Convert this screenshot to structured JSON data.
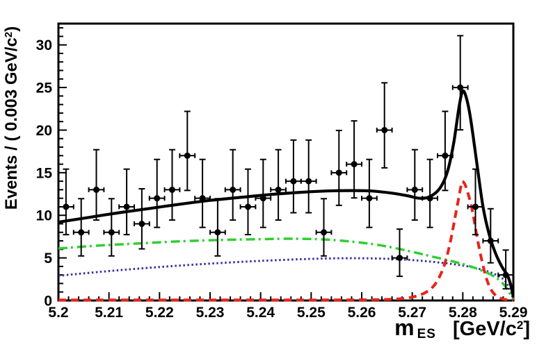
{
  "chart_data": {
    "type": "scatter",
    "subtype": "histogram-with-fit-curves",
    "title": "",
    "legend": "none",
    "grid": false,
    "xlabel": {
      "symbol": "m",
      "subscript": "ES",
      "unit_open": "[GeV/c",
      "unit_sup": "2",
      "unit_close": "]"
    },
    "ylabel": {
      "prefix": "Events / ( 0.003 GeV/c",
      "sup": "2",
      "close": ")"
    },
    "xlim": [
      5.2,
      5.29
    ],
    "ylim": [
      0,
      32.5
    ],
    "x_ticks": {
      "major": [
        5.2,
        5.21,
        5.22,
        5.23,
        5.24,
        5.25,
        5.26,
        5.27,
        5.28,
        5.29
      ],
      "labels": [
        "5.2",
        "5.21",
        "5.22",
        "5.23",
        "5.24",
        "5.25",
        "5.26",
        "5.27",
        "5.28",
        "5.29"
      ],
      "minor_step": 0.002
    },
    "y_ticks": {
      "major": [
        0,
        5,
        10,
        15,
        20,
        25,
        30
      ],
      "labels": [
        "0",
        "5",
        "10",
        "15",
        "20",
        "25",
        "30"
      ],
      "minor_step": 1
    },
    "bin_half_width": 0.0015,
    "marker": {
      "color": "#000000",
      "radius": 4.5
    },
    "points": [
      {
        "x": 5.2015,
        "y": 11,
        "eu": 4.42,
        "ed": 3.27
      },
      {
        "x": 5.2045,
        "y": 8,
        "eu": 3.95,
        "ed": 2.77
      },
      {
        "x": 5.2075,
        "y": 13,
        "eu": 4.7,
        "ed": 3.56
      },
      {
        "x": 5.2105,
        "y": 8,
        "eu": 3.95,
        "ed": 2.77
      },
      {
        "x": 5.2135,
        "y": 11,
        "eu": 4.42,
        "ed": 3.27
      },
      {
        "x": 5.2165,
        "y": 9,
        "eu": 4.11,
        "ed": 2.94
      },
      {
        "x": 5.2195,
        "y": 12,
        "eu": 4.56,
        "ed": 3.42
      },
      {
        "x": 5.2225,
        "y": 13,
        "eu": 4.7,
        "ed": 3.56
      },
      {
        "x": 5.2255,
        "y": 17,
        "eu": 5.2,
        "ed": 4.08
      },
      {
        "x": 5.2285,
        "y": 12,
        "eu": 4.56,
        "ed": 3.42
      },
      {
        "x": 5.2315,
        "y": 8,
        "eu": 3.95,
        "ed": 2.77
      },
      {
        "x": 5.2345,
        "y": 13,
        "eu": 4.7,
        "ed": 3.56
      },
      {
        "x": 5.2375,
        "y": 11,
        "eu": 4.42,
        "ed": 3.27
      },
      {
        "x": 5.2405,
        "y": 12,
        "eu": 4.56,
        "ed": 3.42
      },
      {
        "x": 5.2435,
        "y": 13,
        "eu": 4.7,
        "ed": 3.56
      },
      {
        "x": 5.2465,
        "y": 14,
        "eu": 4.83,
        "ed": 3.7
      },
      {
        "x": 5.2495,
        "y": 14,
        "eu": 4.83,
        "ed": 3.7
      },
      {
        "x": 5.2525,
        "y": 8,
        "eu": 3.95,
        "ed": 2.77
      },
      {
        "x": 5.2555,
        "y": 15,
        "eu": 4.96,
        "ed": 3.83
      },
      {
        "x": 5.2585,
        "y": 16,
        "eu": 5.08,
        "ed": 3.96
      },
      {
        "x": 5.2615,
        "y": 12,
        "eu": 4.56,
        "ed": 3.42
      },
      {
        "x": 5.2645,
        "y": 20,
        "eu": 5.55,
        "ed": 4.43
      },
      {
        "x": 5.2675,
        "y": 5,
        "eu": 3.38,
        "ed": 2.16
      },
      {
        "x": 5.2705,
        "y": 13,
        "eu": 4.7,
        "ed": 3.56
      },
      {
        "x": 5.2735,
        "y": 12,
        "eu": 4.56,
        "ed": 3.42
      },
      {
        "x": 5.2765,
        "y": 17,
        "eu": 5.2,
        "ed": 4.08
      },
      {
        "x": 5.2795,
        "y": 25,
        "eu": 6.08,
        "ed": 4.97
      },
      {
        "x": 5.2825,
        "y": 11,
        "eu": 4.42,
        "ed": 3.27
      },
      {
        "x": 5.2855,
        "y": 7,
        "eu": 3.77,
        "ed": 2.58
      },
      {
        "x": 5.2885,
        "y": 3,
        "eu": 2.92,
        "ed": 1.63
      }
    ],
    "curves": [
      {
        "name": "background-dotted",
        "color": "#3232a0",
        "style": "dotted",
        "width": 3,
        "points": [
          [
            5.2,
            2.9
          ],
          [
            5.208,
            3.35
          ],
          [
            5.216,
            3.75
          ],
          [
            5.224,
            4.1
          ],
          [
            5.232,
            4.4
          ],
          [
            5.24,
            4.65
          ],
          [
            5.248,
            4.85
          ],
          [
            5.255,
            4.95
          ],
          [
            5.261,
            4.95
          ],
          [
            5.267,
            4.85
          ],
          [
            5.272,
            4.65
          ],
          [
            5.277,
            4.35
          ],
          [
            5.281,
            4.0
          ],
          [
            5.2845,
            3.5
          ],
          [
            5.287,
            2.9
          ],
          [
            5.2885,
            2.2
          ],
          [
            5.2895,
            1.0
          ],
          [
            5.29,
            0.1
          ]
        ]
      },
      {
        "name": "background-dashdot",
        "color": "#32cd32",
        "style": "dashdot",
        "width": 3.5,
        "points": [
          [
            5.2,
            6.1
          ],
          [
            5.208,
            6.45
          ],
          [
            5.216,
            6.7
          ],
          [
            5.224,
            6.95
          ],
          [
            5.232,
            7.1
          ],
          [
            5.24,
            7.2
          ],
          [
            5.247,
            7.25
          ],
          [
            5.253,
            7.15
          ],
          [
            5.259,
            6.85
          ],
          [
            5.264,
            6.45
          ],
          [
            5.269,
            5.85
          ],
          [
            5.274,
            5.15
          ],
          [
            5.279,
            4.45
          ],
          [
            5.2825,
            3.8
          ],
          [
            5.285,
            3.2
          ],
          [
            5.287,
            2.5
          ],
          [
            5.2885,
            1.6
          ],
          [
            5.2895,
            0.6
          ],
          [
            5.29,
            0.1
          ]
        ]
      },
      {
        "name": "signal-peak",
        "color": "#e62419",
        "style": "dashed",
        "width": 4,
        "points": [
          [
            5.2,
            0.06
          ],
          [
            5.24,
            0.06
          ],
          [
            5.256,
            0.07
          ],
          [
            5.263,
            0.1
          ],
          [
            5.267,
            0.18
          ],
          [
            5.27,
            0.4
          ],
          [
            5.2725,
            0.9
          ],
          [
            5.2745,
            1.9
          ],
          [
            5.2762,
            3.9
          ],
          [
            5.2775,
            6.8
          ],
          [
            5.2787,
            10.5
          ],
          [
            5.2797,
            13.6
          ],
          [
            5.2801,
            13.9
          ],
          [
            5.2807,
            13.2
          ],
          [
            5.2818,
            10.8
          ],
          [
            5.283,
            6.9
          ],
          [
            5.2842,
            3.6
          ],
          [
            5.2853,
            1.6
          ],
          [
            5.2865,
            0.6
          ],
          [
            5.2878,
            0.2
          ],
          [
            5.289,
            0.08
          ],
          [
            5.29,
            0.06
          ]
        ]
      },
      {
        "name": "total-fit",
        "color": "#000000",
        "style": "solid",
        "width": 4.2,
        "points": [
          [
            5.2,
            9.2
          ],
          [
            5.206,
            9.75
          ],
          [
            5.212,
            10.3
          ],
          [
            5.218,
            10.8
          ],
          [
            5.224,
            11.3
          ],
          [
            5.23,
            11.75
          ],
          [
            5.236,
            12.1
          ],
          [
            5.242,
            12.45
          ],
          [
            5.248,
            12.7
          ],
          [
            5.253,
            12.85
          ],
          [
            5.258,
            12.9
          ],
          [
            5.262,
            12.85
          ],
          [
            5.266,
            12.6
          ],
          [
            5.269,
            12.3
          ],
          [
            5.2715,
            12.0
          ],
          [
            5.2735,
            12.2
          ],
          [
            5.2755,
            13.2
          ],
          [
            5.277,
            15.2
          ],
          [
            5.2782,
            18.5
          ],
          [
            5.2792,
            22.5
          ],
          [
            5.2799,
            24.5
          ],
          [
            5.2806,
            24.0
          ],
          [
            5.2815,
            21.5
          ],
          [
            5.2828,
            16.0
          ],
          [
            5.284,
            11.0
          ],
          [
            5.2852,
            7.8
          ],
          [
            5.2865,
            5.5
          ],
          [
            5.2878,
            3.9
          ],
          [
            5.2888,
            3.0
          ],
          [
            5.2895,
            1.8
          ],
          [
            5.29,
            0.4
          ]
        ]
      }
    ]
  }
}
